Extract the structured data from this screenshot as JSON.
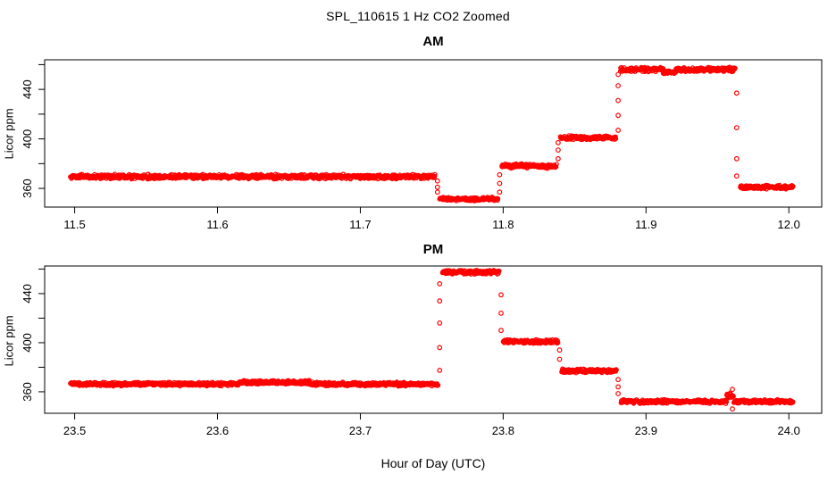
{
  "page": {
    "main_title": "SPL_110615  1 Hz CO2 Zoomed",
    "x_axis_label": "Hour of Day (UTC)",
    "background_color": "#ffffff",
    "axis_color": "#000000"
  },
  "chart_data": [
    {
      "type": "scatter",
      "title": "AM",
      "ylabel": "Licor ppm",
      "point_color": "#ff0000",
      "marker": "open-circle",
      "xlim": [
        11.479,
        12.023
      ],
      "ylim": [
        344.9,
        463.9
      ],
      "x_ticks": {
        "values": [
          11.5,
          11.6,
          11.7,
          11.8,
          11.9,
          12.0
        ],
        "labels": [
          "11.5",
          "11.6",
          "11.7",
          "11.8",
          "11.9",
          "12.0"
        ]
      },
      "y_ticks": {
        "values": [
          360,
          380,
          400,
          420,
          440,
          460
        ],
        "labels": [
          "360",
          "",
          "400",
          "",
          "440",
          ""
        ]
      },
      "plateaus": [
        {
          "t_start": 11.497,
          "t_end": 11.7525,
          "value": 369.5,
          "noise": 1.4
        },
        {
          "t_start": 11.7555,
          "t_end": 11.7965,
          "value": 351.5,
          "noise": 1.2
        },
        {
          "t_start": 11.799,
          "t_end": 11.8375,
          "value": 378.0,
          "noise": 1.3
        },
        {
          "t_start": 11.84,
          "t_end": 11.879,
          "value": 401.0,
          "noise": 1.3
        },
        {
          "t_start": 11.882,
          "t_end": 11.912,
          "value": 456.0,
          "noise": 1.4
        },
        {
          "t_start": 11.912,
          "t_end": 11.921,
          "value": 454.0,
          "noise": 1.1
        },
        {
          "t_start": 11.921,
          "t_end": 11.9625,
          "value": 456.0,
          "noise": 1.4
        },
        {
          "t_start": 11.966,
          "t_end": 12.003,
          "value": 361.0,
          "noise": 1.1
        }
      ],
      "transitions": [
        {
          "t": 11.754,
          "values": [
            366,
            361,
            357
          ]
        },
        {
          "t": 11.7975,
          "values": [
            357,
            364,
            371
          ]
        },
        {
          "t": 11.8385,
          "values": [
            384,
            391,
            397
          ]
        },
        {
          "t": 11.8805,
          "values": [
            407,
            419,
            431,
            443,
            452
          ]
        },
        {
          "t": 11.9635,
          "values": [
            437,
            409,
            384,
            370
          ]
        }
      ]
    },
    {
      "type": "scatter",
      "title": "PM",
      "ylabel": "Licor ppm",
      "point_color": "#ff0000",
      "marker": "open-circle",
      "xlim": [
        23.479,
        24.023
      ],
      "ylim": [
        342.5,
        462.5
      ],
      "x_ticks": {
        "values": [
          23.5,
          23.6,
          23.7,
          23.8,
          23.9,
          24.0
        ],
        "labels": [
          "23.5",
          "23.6",
          "23.7",
          "23.8",
          "23.9",
          "24.0"
        ]
      },
      "y_ticks": {
        "values": [
          360,
          380,
          400,
          420,
          440,
          460
        ],
        "labels": [
          "360",
          "",
          "400",
          "",
          "440",
          ""
        ]
      },
      "plateaus": [
        {
          "t_start": 23.497,
          "t_end": 23.615,
          "value": 366.3,
          "noise": 1.2
        },
        {
          "t_start": 23.615,
          "t_end": 23.665,
          "value": 367.8,
          "noise": 1.2
        },
        {
          "t_start": 23.665,
          "t_end": 23.7545,
          "value": 366.3,
          "noise": 1.2
        },
        {
          "t_start": 23.7575,
          "t_end": 23.7975,
          "value": 457.5,
          "noise": 1.4
        },
        {
          "t_start": 23.8,
          "t_end": 23.8385,
          "value": 401.0,
          "noise": 1.3
        },
        {
          "t_start": 23.841,
          "t_end": 23.8795,
          "value": 377.0,
          "noise": 1.2
        },
        {
          "t_start": 23.8825,
          "t_end": 23.9565,
          "value": 352.0,
          "noise": 1.2
        },
        {
          "t_start": 23.9565,
          "t_end": 23.9615,
          "value": 356.5,
          "noise": 2.0
        },
        {
          "t_start": 23.9615,
          "t_end": 24.003,
          "value": 352.0,
          "noise": 1.2
        }
      ],
      "transitions": [
        {
          "t": 23.7555,
          "values": [
            377.5,
            396,
            416,
            434,
            448
          ]
        },
        {
          "t": 23.7985,
          "values": [
            439,
            424,
            410
          ]
        },
        {
          "t": 23.8395,
          "values": [
            394,
            386.5
          ]
        },
        {
          "t": 23.8805,
          "values": [
            370,
            364,
            358.5
          ]
        },
        {
          "t": 23.9605,
          "values": [
            362,
            346
          ]
        }
      ]
    }
  ]
}
